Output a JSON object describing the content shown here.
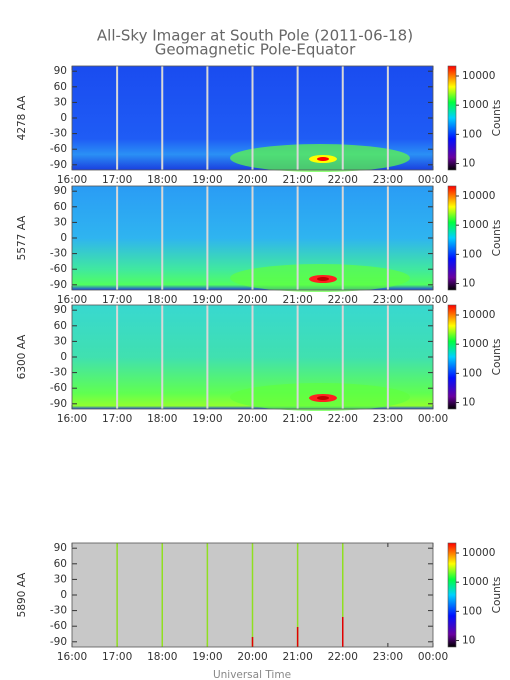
{
  "title": "All-Sky Imager at South Pole (2011-06-18)",
  "subtitle": "Geomagnetic Pole-Equator",
  "xlabel": "Universal Time",
  "chart_data": [
    {
      "type": "heatmap",
      "ylabel": "4278 AA",
      "ylim": [
        -100,
        100
      ],
      "yticks": [
        90,
        60,
        30,
        0,
        -30,
        -60,
        -90
      ],
      "xlim": [
        16,
        24
      ],
      "xticks": [
        {
          "value": 16,
          "label": "16:00"
        },
        {
          "value": 17,
          "label": "17:00"
        },
        {
          "value": 18,
          "label": "18:00"
        },
        {
          "value": 19,
          "label": "19:00"
        },
        {
          "value": 20,
          "label": "20:00"
        },
        {
          "value": 21,
          "label": "21:00"
        },
        {
          "value": 22,
          "label": "22:00"
        },
        {
          "value": 23,
          "label": "23:00"
        },
        {
          "value": 24,
          "label": "00:00"
        }
      ],
      "colorbar_label": "Counts",
      "clim": [
        6,
        22000
      ],
      "clog": true,
      "cticks": [
        10,
        100,
        1000,
        10000
      ]
    },
    {
      "type": "heatmap",
      "ylabel": "5577 AA",
      "ylim": [
        -100,
        100
      ],
      "yticks": [
        90,
        60,
        30,
        0,
        -30,
        -60,
        -90
      ],
      "xlim": [
        16,
        24
      ],
      "xticks": [
        {
          "value": 16,
          "label": "16:00"
        },
        {
          "value": 17,
          "label": "17:00"
        },
        {
          "value": 18,
          "label": "18:00"
        },
        {
          "value": 19,
          "label": "19:00"
        },
        {
          "value": 20,
          "label": "20:00"
        },
        {
          "value": 21,
          "label": "21:00"
        },
        {
          "value": 22,
          "label": "22:00"
        },
        {
          "value": 23,
          "label": "23:00"
        },
        {
          "value": 24,
          "label": "00:00"
        }
      ],
      "colorbar_label": "Counts",
      "clim": [
        6,
        22000
      ],
      "clog": true,
      "cticks": [
        10,
        100,
        1000,
        10000
      ]
    },
    {
      "type": "heatmap",
      "ylabel": "6300 AA",
      "ylim": [
        -100,
        100
      ],
      "yticks": [
        90,
        60,
        30,
        0,
        -30,
        -60,
        -90
      ],
      "xlim": [
        16,
        24
      ],
      "xticks": [
        {
          "value": 16,
          "label": "16:00"
        },
        {
          "value": 17,
          "label": "17:00"
        },
        {
          "value": 18,
          "label": "18:00"
        },
        {
          "value": 19,
          "label": "19:00"
        },
        {
          "value": 20,
          "label": "20:00"
        },
        {
          "value": 21,
          "label": "21:00"
        },
        {
          "value": 22,
          "label": "22:00"
        },
        {
          "value": 23,
          "label": "23:00"
        },
        {
          "value": 24,
          "label": "00:00"
        }
      ],
      "colorbar_label": "Counts",
      "clim": [
        6,
        22000
      ],
      "clog": true,
      "cticks": [
        10,
        100,
        1000,
        10000
      ]
    },
    {
      "type": "heatmap",
      "ylabel": "5890 AA",
      "ylim": [
        -100,
        100
      ],
      "yticks": [
        90,
        60,
        30,
        0,
        -30,
        -60,
        -90
      ],
      "xlim": [
        16,
        24
      ],
      "xticks": [
        {
          "value": 16,
          "label": "16:00"
        },
        {
          "value": 17,
          "label": "17:00"
        },
        {
          "value": 18,
          "label": "18:00"
        },
        {
          "value": 19,
          "label": "19:00"
        },
        {
          "value": 20,
          "label": "20:00"
        },
        {
          "value": 21,
          "label": "21:00"
        },
        {
          "value": 22,
          "label": "22:00"
        },
        {
          "value": 23,
          "label": "23:00"
        },
        {
          "value": 24,
          "label": "00:00"
        }
      ],
      "colorbar_label": "Counts",
      "clim": [
        6,
        22000
      ],
      "clog": true,
      "cticks": [
        10,
        100,
        1000,
        10000
      ]
    }
  ]
}
